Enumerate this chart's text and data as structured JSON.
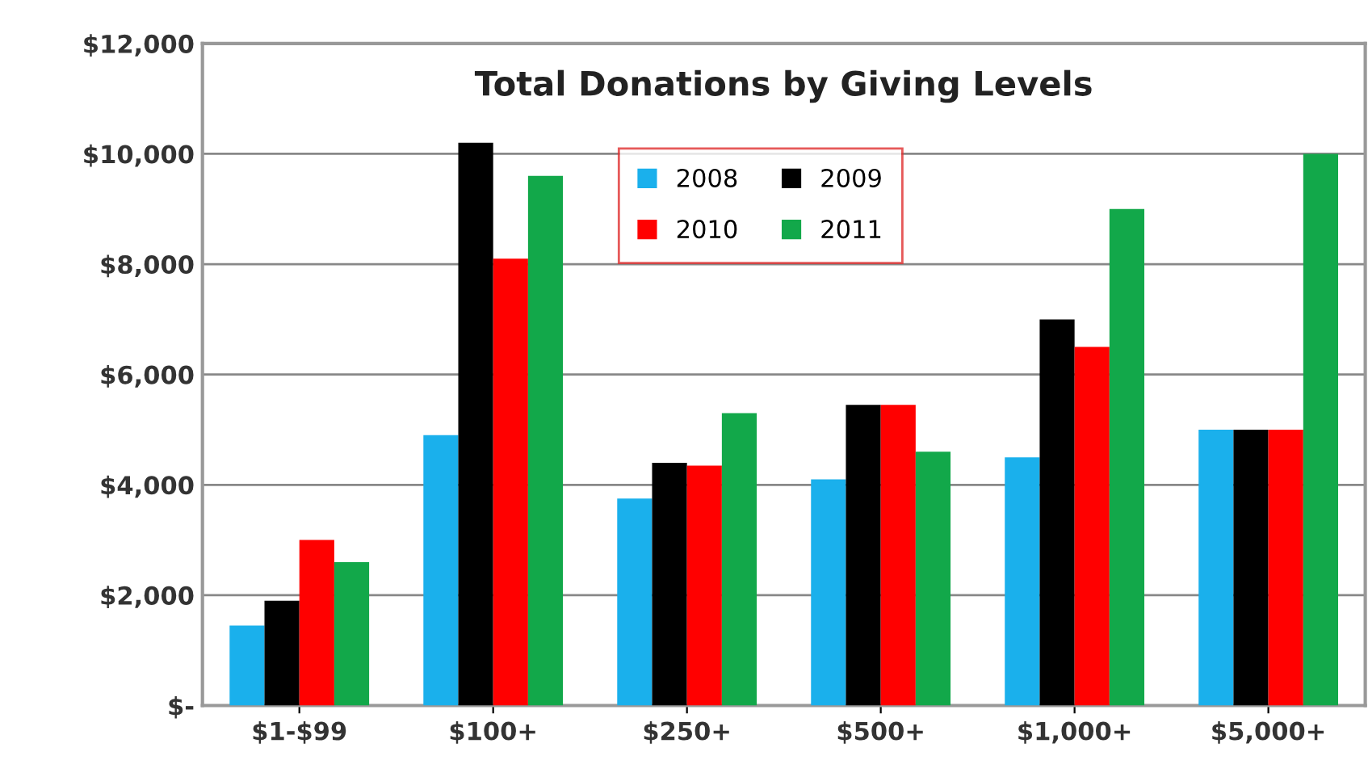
{
  "chart_data": {
    "type": "bar",
    "title": "Total Donations by Giving Levels",
    "categories": [
      "$1-$99",
      "$100+",
      "$250+",
      "$500+",
      "$1,000+",
      "$5,000+"
    ],
    "series": [
      {
        "name": "2008",
        "color": "#1ab0ec",
        "values": [
          1450,
          4900,
          3750,
          4100,
          4500,
          5000
        ]
      },
      {
        "name": "2009",
        "color": "#000000",
        "values": [
          1900,
          10200,
          4400,
          5450,
          7000,
          5000
        ]
      },
      {
        "name": "2010",
        "color": "#ff0000",
        "values": [
          3000,
          8100,
          4350,
          5450,
          6500,
          5000
        ]
      },
      {
        "name": "2011",
        "color": "#12a84a",
        "values": [
          2600,
          9600,
          5300,
          4600,
          9000,
          10000
        ]
      }
    ],
    "ylim": [
      0,
      12000
    ],
    "yticks": [
      {
        "value": 0,
        "label": "$-"
      },
      {
        "value": 2000,
        "label": "$2,000"
      },
      {
        "value": 4000,
        "label": "$4,000"
      },
      {
        "value": 6000,
        "label": "$6,000"
      },
      {
        "value": 8000,
        "label": "$8,000"
      },
      {
        "value": 10000,
        "label": "$10,000"
      },
      {
        "value": 12000,
        "label": "$12,000"
      }
    ],
    "grid": "y",
    "legend": "top center"
  }
}
